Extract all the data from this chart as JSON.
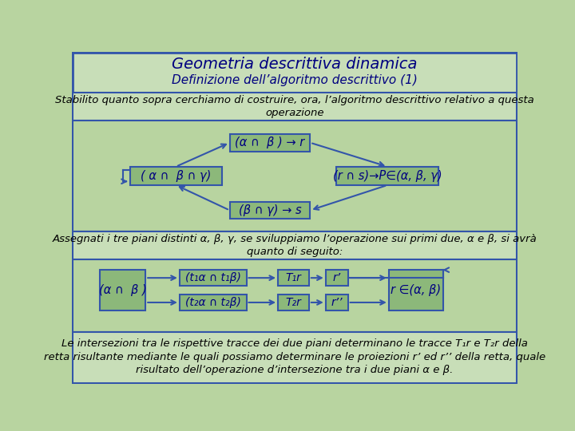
{
  "title": "Geometria descrittiva dinamica",
  "subtitle": "Definizione dell’algoritmo descrittivo (1)",
  "bg_color": "#b8d4a0",
  "header_bg": "#c8deb8",
  "box_bg": "#8cb87a",
  "box_border": "#3355aa",
  "text_color": "#000080",
  "title_color": "#000080",
  "para1": "Stabilito quanto sopra cerchiamo di costruire, ora, l’algoritmo descrittivo relativo a questa\noperazione",
  "para2": "Assegnati i tre piani distinti α, β, γ, se sviluppiamo l’operazione sui primi due, α e β, si avrà\nquanto di seguito:",
  "para3": "Le intersezioni tra le rispettive tracce dei due piani determinano le tracce T₁r e T₂r della\nretta risultante mediante le quali possiamo determinare le proiezioni r’ ed r’’ della retta, quale\nrisultato dell’operazione d’intersezione tra i due piani α e β.",
  "box1_text": "(α ∩  β ) → r",
  "box2_text": "( α ∩  β ∩ γ)",
  "box3_text": "(r ∩ s)→P∈(α, β, γ)",
  "box4_text": "(β ∩ γ) → s",
  "box_a_text": "(α ∩  β )",
  "box_b_text": "(t₁α ∩ t₁β)",
  "box_c_text": "T₁r",
  "box_d_text": "r’",
  "box_e_text": "r ∈(α, β)",
  "box_f_text": "(t₂α ∩ t₂β)",
  "box_g_text": "T₂r",
  "box_h_text": "r’’"
}
